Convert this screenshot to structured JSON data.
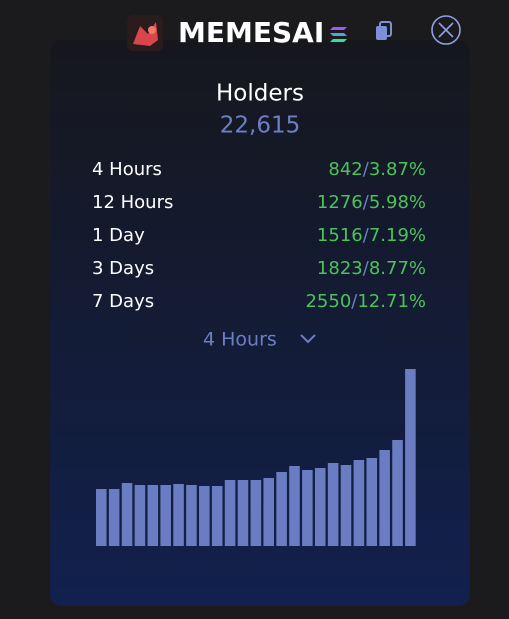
{
  "header": {
    "title": "MEMESAI"
  },
  "holders": {
    "label": "Holders",
    "count": "22,615"
  },
  "stats": [
    {
      "period": "4 Hours",
      "change": "842",
      "separator": "/",
      "percent": "3.87%"
    },
    {
      "period": "12 Hours",
      "change": "1276",
      "separator": "/",
      "percent": "5.98%"
    },
    {
      "period": "1 Day",
      "change": "1516",
      "separator": "/",
      "percent": "7.19%"
    },
    {
      "period": "3 Days",
      "change": "1823",
      "separator": "/",
      "percent": "8.77%"
    },
    {
      "period": "7 Days",
      "change": "2550",
      "separator": "/",
      "percent": "12.71%"
    }
  ],
  "dropdown": {
    "label": "4 Hours"
  },
  "chart_data": {
    "type": "bar",
    "color": "#6a7dc2",
    "values": [
      57,
      57,
      63,
      61,
      61,
      61,
      62,
      61,
      60,
      60,
      66,
      66,
      66,
      68,
      74,
      80,
      76,
      78,
      83,
      81,
      86,
      88,
      96,
      106,
      177
    ]
  }
}
